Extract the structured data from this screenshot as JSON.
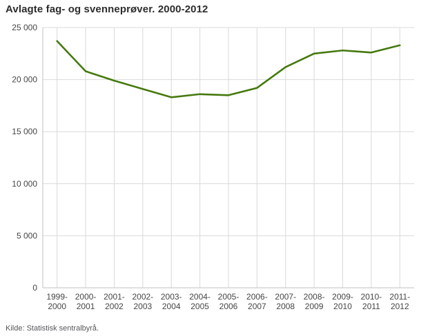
{
  "title": "Avlagte fag- og svenneprøver. 2000-2012",
  "source": "Kilde: Statistisk sentralbyrå.",
  "colors": {
    "line": "#45790e",
    "grid": "#d9d9d9",
    "axis": "#c2c2c2",
    "text": "#454545"
  },
  "chart_data": {
    "type": "line",
    "title": "Avlagte fag- og svenneprøver. 2000-2012",
    "categories": [
      "1999-2000",
      "2000-2001",
      "2001-2002",
      "2002-2003",
      "2003-2004",
      "2004-2005",
      "2005-2006",
      "2006-2007",
      "2007-2008",
      "2008-2009",
      "2009-2010",
      "2010-2011",
      "2011-2012"
    ],
    "values": [
      23700,
      20800,
      19900,
      19100,
      18300,
      18600,
      18500,
      19200,
      21200,
      22500,
      22800,
      22600,
      23300
    ],
    "xlabel": "",
    "ylabel": "",
    "ylim": [
      0,
      25000
    ],
    "ytick_step": 5000,
    "grid": true,
    "legend": "none",
    "source": "Kilde: Statistisk sentralbyrå."
  }
}
